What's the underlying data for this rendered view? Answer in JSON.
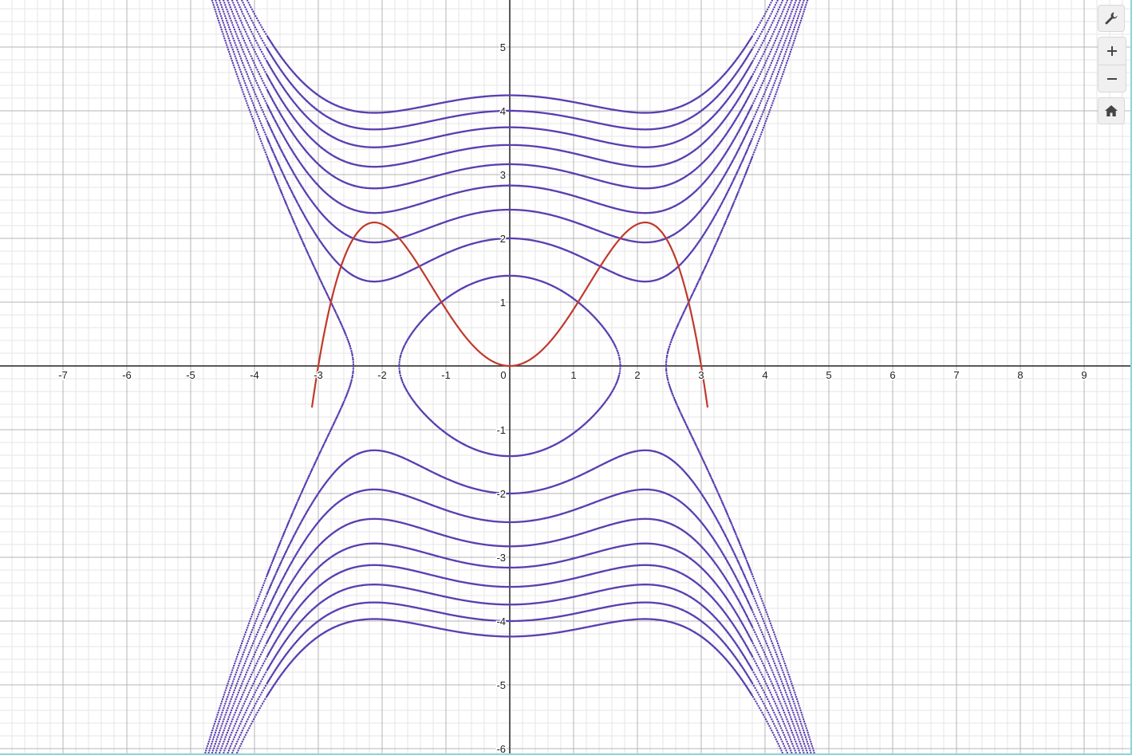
{
  "toolbar": {
    "settings_icon": "wrench-icon",
    "zoom_in_icon": "plus-icon",
    "zoom_out_icon": "minus-icon",
    "home_icon": "home-icon"
  },
  "colors": {
    "grid_minor": "#e6e6e6",
    "grid_major": "#b4b4b4",
    "axis": "#222222",
    "purple_series": "#5a3fb0",
    "red_series": "#c0392b",
    "frame": "#8ed6d6"
  },
  "chart_data": {
    "type": "line",
    "title": "",
    "xlabel": "",
    "ylabel": "",
    "xlim": [
      -8,
      9.75
    ],
    "ylim": [
      -6.1,
      5.75
    ],
    "x_ticks": [
      -7,
      -6,
      -5,
      -4,
      -3,
      -2,
      -1,
      0,
      1,
      2,
      3,
      4,
      5,
      6,
      7,
      8,
      9
    ],
    "y_ticks": [
      -6,
      -5,
      -4,
      -3,
      -2,
      -1,
      1,
      2,
      3,
      4,
      5
    ],
    "x_tick_labels": [
      "-7",
      "-6",
      "-5",
      "-4",
      "-3",
      "-2",
      "-1",
      "0",
      "1",
      "2",
      "3",
      "4",
      "5",
      "6",
      "7",
      "8",
      "9"
    ],
    "y_tick_labels": [
      "-6",
      "-5",
      "-4",
      "-3",
      "-2",
      "-1",
      "1",
      "2",
      "3",
      "4",
      "5"
    ],
    "grid": true,
    "minor_grid_step": 0.2,
    "curves": [
      {
        "style": "solid",
        "color": "#c0392b",
        "equation": "y = x^2 - x^4/9",
        "x_range": [
          -3.1,
          3.1
        ]
      },
      {
        "style": "dotted",
        "color": "#5a3fb0",
        "equation": "y^2 = (x^4/9 - x^2) + c",
        "c_values": [
          2,
          4,
          6,
          8,
          10,
          12,
          14,
          16,
          18
        ]
      }
    ]
  }
}
